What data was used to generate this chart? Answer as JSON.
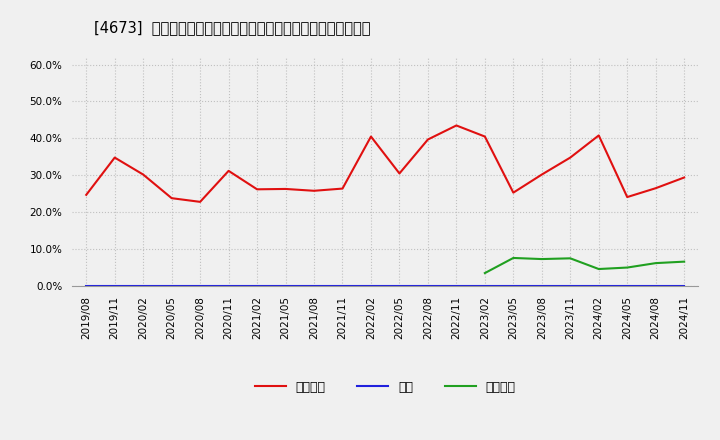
{
  "title": "[4673]  売上債権、在庫、買入債務の総資産に対する比率の推移",
  "x_labels": [
    "2019/08",
    "2019/11",
    "2020/02",
    "2020/05",
    "2020/08",
    "2020/11",
    "2021/02",
    "2021/05",
    "2021/08",
    "2021/11",
    "2022/02",
    "2022/05",
    "2022/08",
    "2022/11",
    "2023/02",
    "2023/05",
    "2023/08",
    "2023/11",
    "2024/02",
    "2024/05",
    "2024/08",
    "2024/11"
  ],
  "urikake": [
    0.247,
    0.348,
    0.302,
    0.238,
    0.228,
    0.312,
    0.262,
    0.263,
    0.258,
    0.264,
    0.405,
    0.305,
    0.397,
    0.435,
    0.405,
    0.253,
    0.302,
    0.348,
    0.408,
    0.241,
    0.265,
    0.294
  ],
  "zaiko": [
    0.001,
    0.001,
    0.001,
    0.001,
    0.001,
    0.001,
    0.001,
    0.001,
    0.001,
    0.001,
    0.001,
    0.001,
    0.001,
    0.001,
    0.001,
    0.001,
    0.001,
    0.001,
    0.001,
    0.001,
    0.001,
    0.001
  ],
  "kaiire": [
    null,
    null,
    null,
    null,
    null,
    null,
    null,
    null,
    null,
    null,
    null,
    null,
    null,
    null,
    0.035,
    0.076,
    0.073,
    0.075,
    0.046,
    0.05,
    0.062,
    0.066
  ],
  "urikake_color": "#e01010",
  "zaiko_color": "#2020dd",
  "kaiire_color": "#20a020",
  "ylim": [
    0.0,
    0.62
  ],
  "yticks": [
    0.0,
    0.1,
    0.2,
    0.3,
    0.4,
    0.5,
    0.6
  ],
  "background_color": "#f0f0f0",
  "plot_bg_color": "#f0f0f0",
  "grid_color": "#bbbbbb",
  "title_fontsize": 10.5,
  "tick_fontsize": 7.5,
  "legend_labels": [
    "売上債権",
    "在庫",
    "買入債務"
  ]
}
